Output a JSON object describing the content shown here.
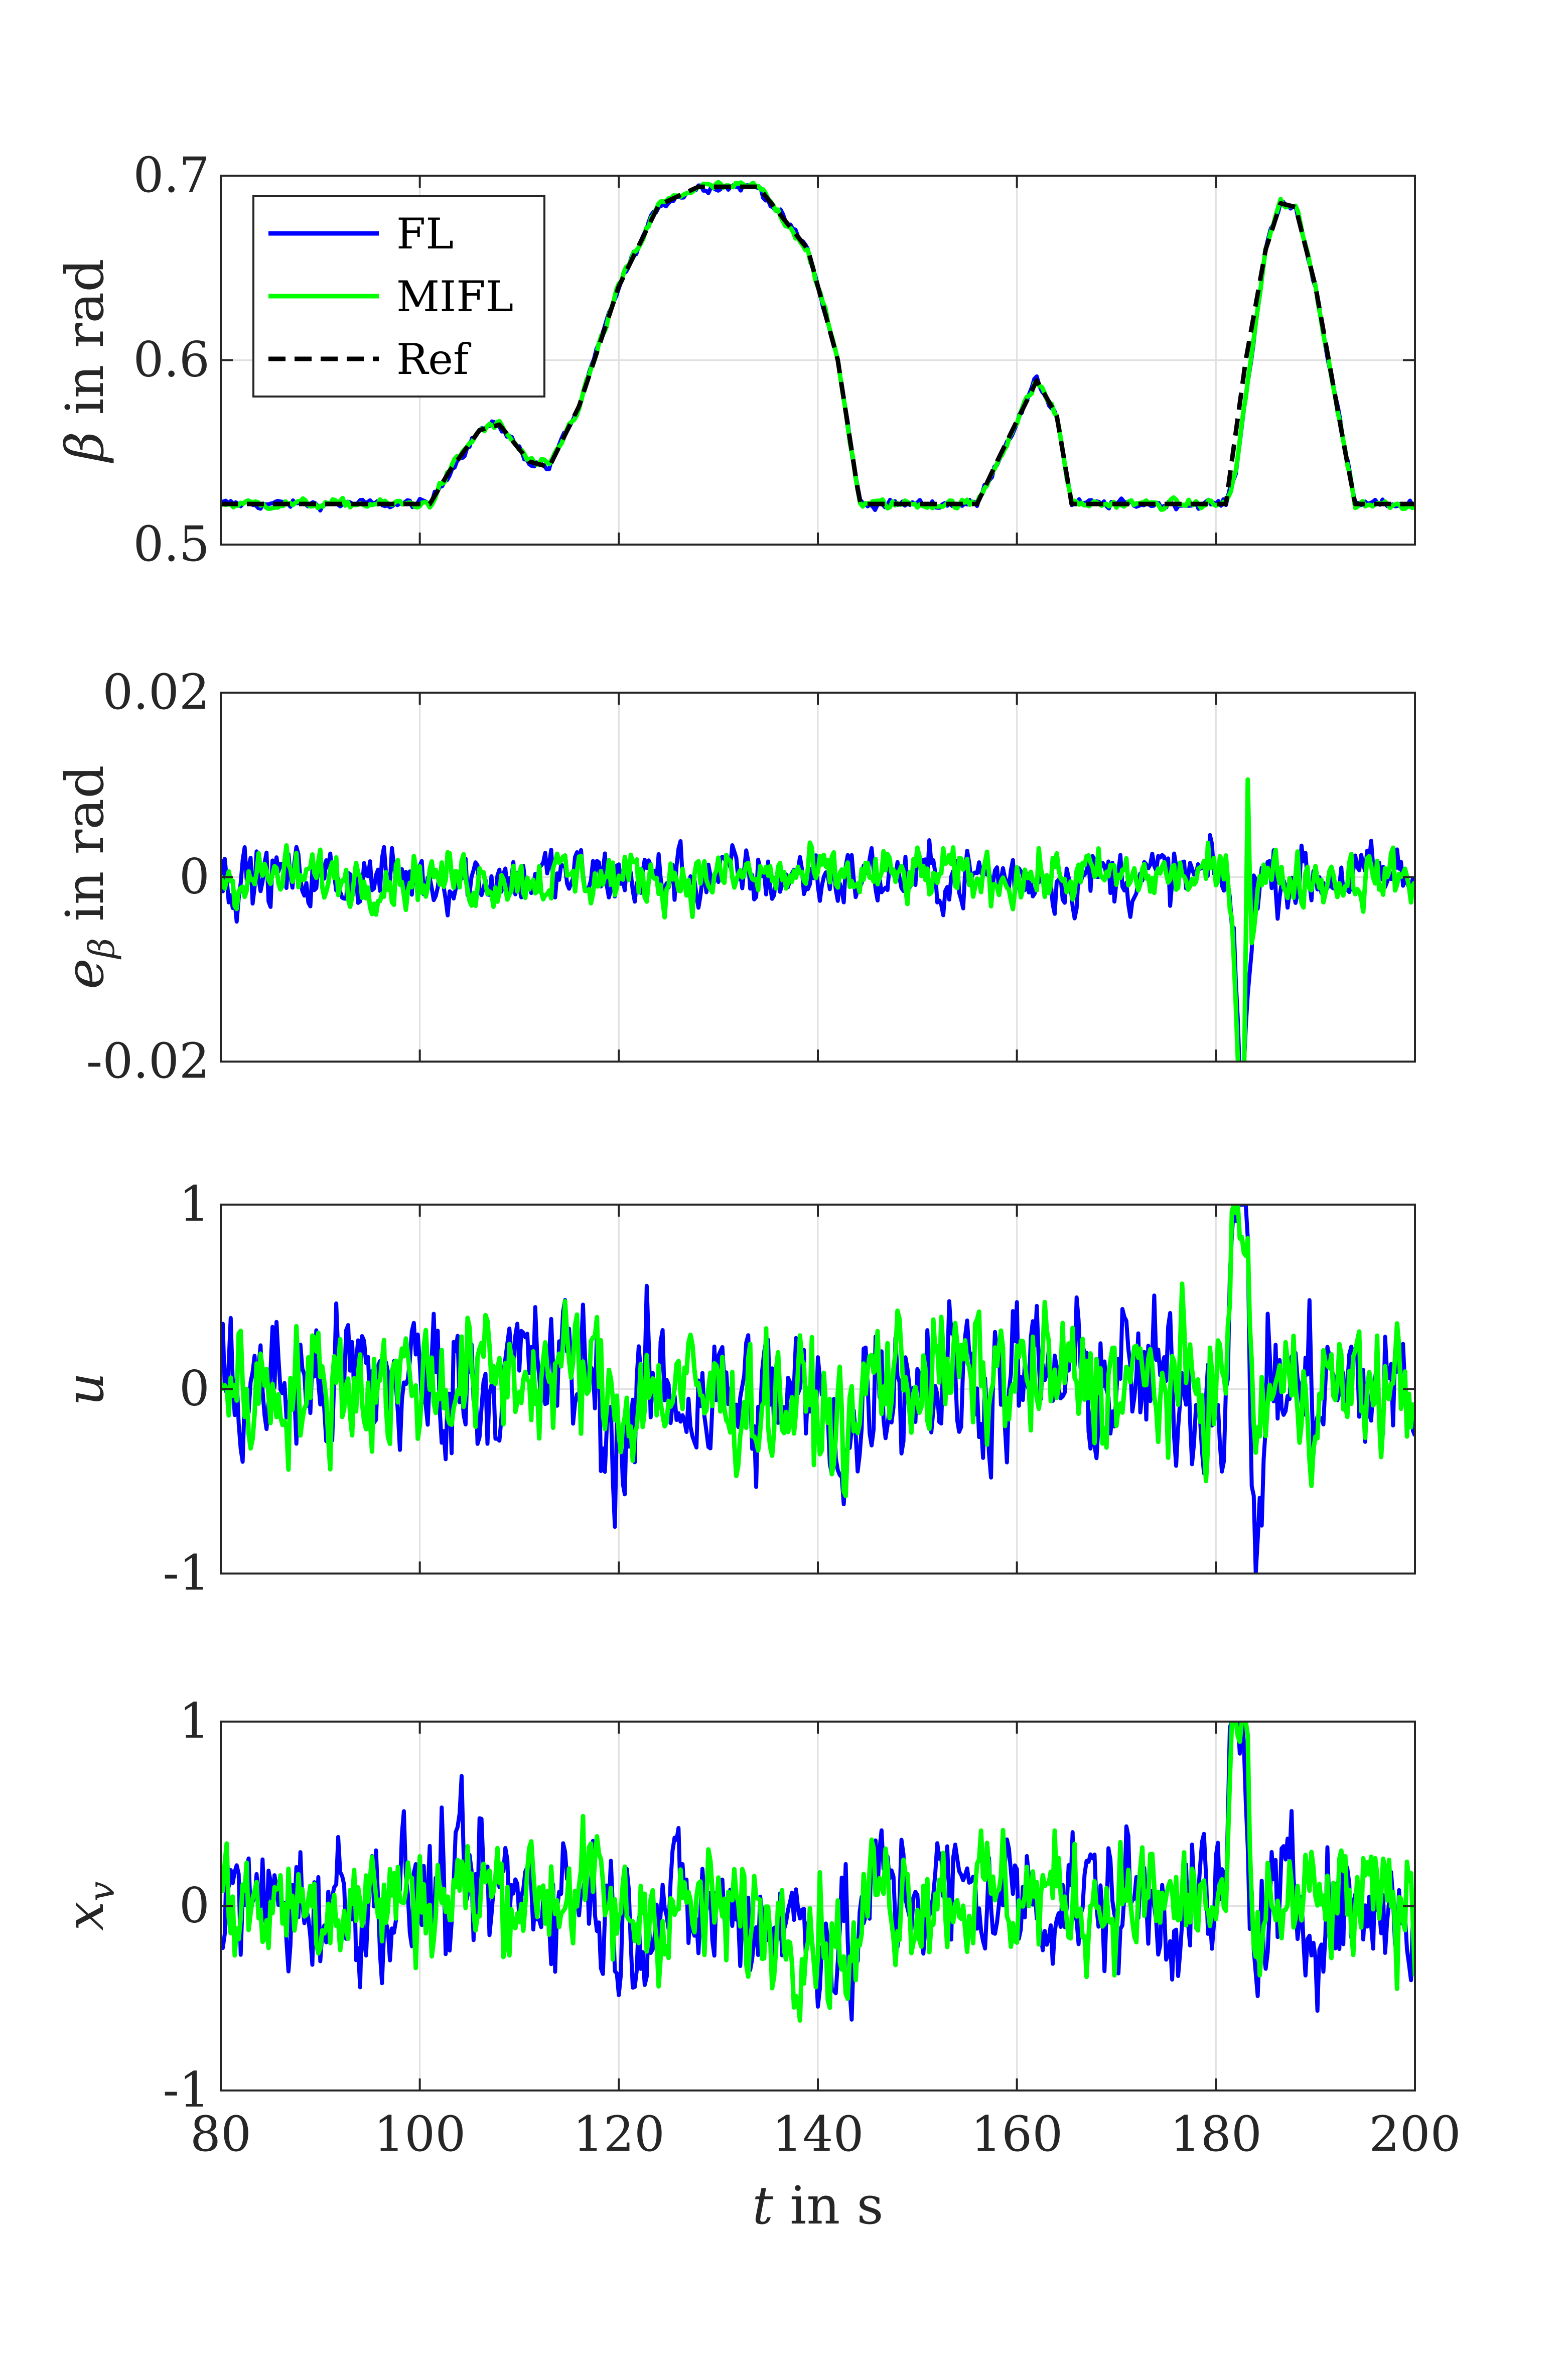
{
  "colors": {
    "FL": "#0000ff",
    "MIFL": "#00ff00",
    "Ref": "#000000",
    "grid": "#e0e0e0",
    "axis": "#262626"
  },
  "legend": {
    "items": [
      "FL",
      "MIFL",
      "Ref"
    ],
    "placement": "top-left of first panel"
  },
  "xaxis": {
    "label_var": "t",
    "label_rest": " in s",
    "ticks": [
      "80",
      "100",
      "120",
      "140",
      "160",
      "180",
      "200"
    ],
    "range": [
      80,
      200
    ]
  },
  "chart_data": [
    {
      "type": "line",
      "title": "",
      "ylabel_var": "β",
      "ylabel_rest": " in rad",
      "ylim": [
        0.5,
        0.7
      ],
      "yticks": [
        "0.5",
        "0.6",
        "0.7"
      ],
      "grid": true,
      "series": [
        {
          "name": "Ref",
          "style": "dashed",
          "x": [
            80,
            101,
            103,
            106,
            108,
            111,
            113,
            116,
            120,
            124,
            128,
            134,
            139,
            142,
            144,
            144.3,
            156,
            158,
            162,
            164,
            165.5,
            181,
            183,
            185,
            186.5,
            188,
            190,
            193,
            194,
            200
          ],
          "y": [
            0.522,
            0.522,
            0.54,
            0.562,
            0.565,
            0.545,
            0.542,
            0.575,
            0.64,
            0.684,
            0.694,
            0.694,
            0.66,
            0.6,
            0.53,
            0.522,
            0.522,
            0.545,
            0.589,
            0.57,
            0.522,
            0.522,
            0.6,
            0.66,
            0.685,
            0.683,
            0.64,
            0.55,
            0.522,
            0.522
          ]
        },
        {
          "name": "FL",
          "noise": 0.003,
          "x": [
            80,
            101,
            103,
            106,
            108,
            111,
            113,
            116,
            120,
            124,
            128,
            134,
            139,
            142,
            144,
            144.3,
            156,
            158,
            162,
            164,
            165.5,
            181,
            182,
            183.5,
            185,
            186.5,
            188,
            190,
            193,
            194,
            200
          ],
          "y": [
            0.522,
            0.522,
            0.54,
            0.562,
            0.565,
            0.545,
            0.542,
            0.575,
            0.64,
            0.684,
            0.694,
            0.694,
            0.66,
            0.6,
            0.53,
            0.522,
            0.522,
            0.545,
            0.589,
            0.57,
            0.522,
            0.522,
            0.54,
            0.6,
            0.66,
            0.685,
            0.683,
            0.64,
            0.55,
            0.522,
            0.522
          ]
        },
        {
          "name": "MIFL",
          "noise": 0.003,
          "x": [
            80,
            101,
            103,
            106,
            108,
            111,
            113,
            116,
            120,
            124,
            128,
            134,
            139,
            142,
            144,
            144.3,
            156,
            158,
            162,
            164,
            165.5,
            181,
            182,
            183.5,
            185,
            186.5,
            188,
            190,
            193,
            194,
            200
          ],
          "y": [
            0.522,
            0.522,
            0.54,
            0.562,
            0.565,
            0.545,
            0.542,
            0.575,
            0.64,
            0.684,
            0.694,
            0.694,
            0.66,
            0.6,
            0.53,
            0.522,
            0.522,
            0.545,
            0.589,
            0.57,
            0.522,
            0.522,
            0.54,
            0.6,
            0.66,
            0.685,
            0.683,
            0.64,
            0.55,
            0.522,
            0.522
          ]
        }
      ]
    },
    {
      "type": "line",
      "title": "",
      "ylabel_var": "e",
      "ylabel_sub": "β",
      "ylabel_rest": " in rad",
      "ylim": [
        -0.02,
        0.02
      ],
      "yticks": [
        "-0.02",
        "0",
        "0.02"
      ],
      "grid": true,
      "series": [
        {
          "name": "FL",
          "noise": 0.004,
          "x": [
            80,
            181,
            181.8,
            182.3,
            182.8,
            183.3,
            183.8,
            200
          ],
          "y": [
            0,
            0,
            -0.005,
            -0.022,
            -0.022,
            -0.01,
            0,
            0
          ]
        },
        {
          "name": "MIFL",
          "noise": 0.0035,
          "x": [
            80,
            181,
            181.8,
            182.3,
            182.8,
            183.2,
            183.6,
            184.2,
            200
          ],
          "y": [
            0,
            0,
            -0.005,
            -0.022,
            -0.022,
            0.011,
            -0.006,
            0,
            0
          ]
        }
      ]
    },
    {
      "type": "line",
      "title": "",
      "ylabel_var": "u",
      "ylabel_rest": "",
      "ylim": [
        -1,
        1
      ],
      "yticks": [
        "-1",
        "0",
        "1"
      ],
      "grid": true,
      "series": [
        {
          "name": "FL",
          "noise": 0.5,
          "x": [
            80,
            117,
            120,
            123,
            140,
            144,
            145,
            181,
            181.5,
            183,
            183.5,
            184,
            185,
            200
          ],
          "y": [
            0,
            0.1,
            -0.3,
            0,
            -0.1,
            -0.3,
            0.1,
            0,
            1,
            1,
            0,
            -1,
            0,
            0
          ]
        },
        {
          "name": "MIFL",
          "noise": 0.42,
          "x": [
            80,
            117,
            120,
            123,
            140,
            144,
            145,
            181,
            181.5,
            183,
            183.5,
            184,
            185,
            200
          ],
          "y": [
            0,
            0.1,
            -0.1,
            0,
            -0.1,
            -0.3,
            0.1,
            0,
            0.93,
            0.93,
            0,
            -0.3,
            0,
            0
          ]
        }
      ]
    },
    {
      "type": "line",
      "title": "",
      "ylabel_var": "x",
      "ylabel_sub": "v",
      "ylabel_rest": "",
      "ylim": [
        -1,
        1
      ],
      "yticks": [
        "-1",
        "0",
        "1"
      ],
      "grid": true,
      "series": [
        {
          "name": "FL",
          "noise": 0.45,
          "x": [
            80,
            117,
            120,
            123,
            140,
            144,
            145,
            181,
            181.5,
            183,
            183.5,
            184,
            185,
            200
          ],
          "y": [
            0,
            0.1,
            -0.1,
            0,
            -0.1,
            -0.3,
            0.1,
            0,
            0.95,
            0.95,
            0,
            -0.5,
            0,
            0
          ]
        },
        {
          "name": "MIFL",
          "noise": 0.4,
          "x": [
            80,
            117,
            120,
            123,
            140,
            144,
            145,
            181,
            181.5,
            183,
            183.5,
            184,
            185,
            200
          ],
          "y": [
            0,
            0.1,
            -0.1,
            0,
            -0.1,
            -0.3,
            0.1,
            0,
            0.93,
            0.93,
            0,
            -0.4,
            0,
            0
          ]
        }
      ]
    }
  ]
}
